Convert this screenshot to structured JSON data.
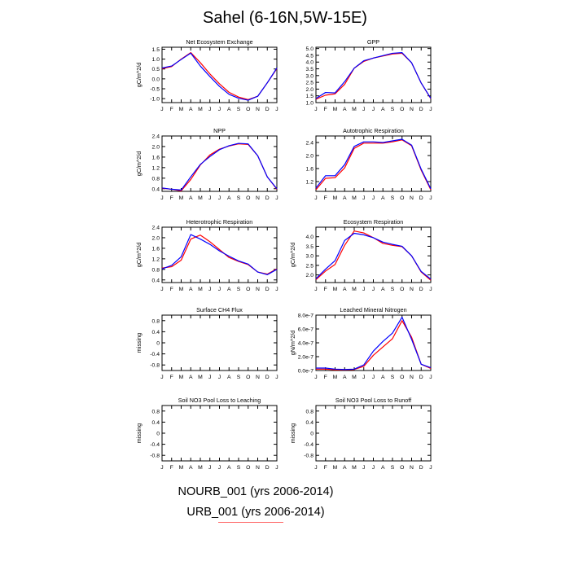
{
  "title": "Sahel (6-16N,5W-15E)",
  "legend": {
    "entries": [
      {
        "label": "NOURB_001 (yrs 2006-2014)",
        "color": "#0000ff"
      },
      {
        "label": "URB_001 (yrs 2006-2014)",
        "color": "#ff0000"
      }
    ]
  },
  "colors": {
    "series_a": "#ff0000",
    "series_b": "#0000ff",
    "axis": "#000000"
  },
  "chart_data": [
    {
      "type": "line",
      "title": "Net Ecosystem Exchange",
      "ylabel": "gC/m^2/d",
      "x": [
        "J",
        "F",
        "M",
        "A",
        "M",
        "J",
        "J",
        "A",
        "S",
        "O",
        "N",
        "D",
        "J"
      ],
      "ylim": [
        -1.2,
        1.6
      ],
      "yticks": [
        -1.0,
        -0.5,
        0.0,
        0.5,
        1.0,
        1.5
      ],
      "ytick_labels": [
        "-1.0",
        "-0.5",
        "0.0",
        "0.5",
        "1.0",
        "1.5"
      ],
      "series": [
        {
          "color": "#ff0000",
          "values": [
            0.52,
            0.62,
            1.0,
            1.33,
            0.82,
            0.25,
            -0.25,
            -0.68,
            -0.92,
            -1.05,
            -0.88,
            -0.2,
            0.52
          ]
        },
        {
          "color": "#0000ff",
          "values": [
            0.55,
            0.65,
            0.98,
            1.3,
            0.65,
            0.12,
            -0.38,
            -0.78,
            -0.98,
            -1.08,
            -0.88,
            -0.2,
            0.55
          ]
        }
      ]
    },
    {
      "type": "line",
      "title": "GPP",
      "ylabel": "",
      "x": [
        "J",
        "F",
        "M",
        "A",
        "M",
        "J",
        "J",
        "A",
        "S",
        "O",
        "N",
        "D",
        "J"
      ],
      "ylim": [
        1.0,
        5.1
      ],
      "yticks": [
        1.0,
        1.5,
        2.0,
        2.5,
        3.0,
        3.5,
        4.0,
        4.5,
        5.0
      ],
      "ytick_labels": [
        "1.0",
        "1.5",
        "2.0",
        "2.5",
        "3.0",
        "3.5",
        "4.0",
        "4.5",
        "5.0"
      ],
      "series": [
        {
          "color": "#ff0000",
          "values": [
            1.25,
            1.55,
            1.65,
            2.35,
            3.55,
            4.05,
            4.3,
            4.45,
            4.6,
            4.65,
            3.95,
            2.45,
            1.3
          ]
        },
        {
          "color": "#0000ff",
          "values": [
            1.3,
            1.75,
            1.72,
            2.55,
            3.55,
            4.1,
            4.3,
            4.48,
            4.65,
            4.7,
            3.95,
            2.45,
            1.32
          ]
        }
      ]
    },
    {
      "type": "line",
      "title": "NPP",
      "ylabel": "gC/m^2/d",
      "x": [
        "J",
        "F",
        "M",
        "A",
        "M",
        "J",
        "J",
        "A",
        "S",
        "O",
        "N",
        "D",
        "J"
      ],
      "ylim": [
        0.3,
        2.4
      ],
      "yticks": [
        0.4,
        0.8,
        1.2,
        1.6,
        2.0,
        2.4
      ],
      "ytick_labels": [
        "0.4",
        "0.8",
        "1.2",
        "1.6",
        "2.0",
        "2.4"
      ],
      "series": [
        {
          "color": "#ff0000",
          "values": [
            0.42,
            0.38,
            0.32,
            0.75,
            1.3,
            1.68,
            1.9,
            2.02,
            2.1,
            2.08,
            1.65,
            0.85,
            0.38
          ]
        },
        {
          "color": "#0000ff",
          "values": [
            0.43,
            0.38,
            0.35,
            0.85,
            1.32,
            1.62,
            1.88,
            2.03,
            2.12,
            2.1,
            1.65,
            0.85,
            0.4
          ]
        }
      ]
    },
    {
      "type": "line",
      "title": "Autotrophic Respiration",
      "ylabel": "",
      "x": [
        "J",
        "F",
        "M",
        "A",
        "M",
        "J",
        "J",
        "A",
        "S",
        "O",
        "N",
        "D",
        "J"
      ],
      "ylim": [
        0.9,
        2.6
      ],
      "yticks": [
        1.2,
        1.6,
        2.0,
        2.4
      ],
      "ytick_labels": [
        "1.2",
        "1.6",
        "2.0",
        "2.4"
      ],
      "series": [
        {
          "color": "#ff0000",
          "values": [
            0.95,
            1.3,
            1.32,
            1.62,
            2.22,
            2.38,
            2.38,
            2.38,
            2.42,
            2.48,
            2.3,
            1.55,
            0.95
          ]
        },
        {
          "color": "#0000ff",
          "values": [
            1.0,
            1.38,
            1.38,
            1.72,
            2.28,
            2.42,
            2.42,
            2.4,
            2.45,
            2.5,
            2.32,
            1.58,
            0.98
          ]
        }
      ]
    },
    {
      "type": "line",
      "title": "Heterotrophic Respiration",
      "ylabel": "gC/m^2/d",
      "x": [
        "J",
        "F",
        "M",
        "A",
        "M",
        "J",
        "J",
        "A",
        "S",
        "O",
        "N",
        "D",
        "J"
      ],
      "ylim": [
        0.3,
        2.4
      ],
      "yticks": [
        0.4,
        0.8,
        1.2,
        1.6,
        2.0,
        2.4
      ],
      "ytick_labels": [
        "0.4",
        "0.8",
        "1.2",
        "1.6",
        "2.0",
        "2.4"
      ],
      "series": [
        {
          "color": "#ff0000",
          "values": [
            0.85,
            0.9,
            1.15,
            1.95,
            2.1,
            1.85,
            1.55,
            1.25,
            1.1,
            0.98,
            0.7,
            0.62,
            0.82
          ]
        },
        {
          "color": "#0000ff",
          "values": [
            0.82,
            0.95,
            1.28,
            2.12,
            1.95,
            1.75,
            1.5,
            1.3,
            1.12,
            1.0,
            0.7,
            0.6,
            0.8
          ]
        }
      ]
    },
    {
      "type": "line",
      "title": "Ecosystem Respiration",
      "ylabel": "gC/m^2/d",
      "x": [
        "J",
        "F",
        "M",
        "A",
        "M",
        "J",
        "J",
        "A",
        "S",
        "O",
        "N",
        "D",
        "J"
      ],
      "ylim": [
        1.6,
        4.5
      ],
      "yticks": [
        2.0,
        2.5,
        3.0,
        3.5,
        4.0
      ],
      "ytick_labels": [
        "2.0",
        "2.5",
        "3.0",
        "3.5",
        "4.0"
      ],
      "series": [
        {
          "color": "#ff0000",
          "values": [
            1.75,
            2.2,
            2.55,
            3.55,
            4.3,
            4.2,
            3.95,
            3.65,
            3.55,
            3.48,
            3.0,
            2.15,
            1.72
          ]
        },
        {
          "color": "#0000ff",
          "values": [
            1.8,
            2.3,
            2.75,
            3.8,
            4.18,
            4.1,
            3.95,
            3.72,
            3.6,
            3.5,
            3.0,
            2.18,
            1.78
          ]
        }
      ]
    },
    {
      "type": "line",
      "title": "Surface CH4 Flux",
      "ylabel": "missing",
      "x": [
        "J",
        "F",
        "M",
        "A",
        "M",
        "J",
        "J",
        "A",
        "S",
        "O",
        "N",
        "D",
        "J"
      ],
      "ylim": [
        -1.0,
        1.0
      ],
      "yticks": [
        -0.8,
        -0.4,
        0.0,
        0.4,
        0.8
      ],
      "ytick_labels": [
        "-0.8",
        "-0.4",
        "0",
        "0.4",
        "0.8"
      ],
      "series": []
    },
    {
      "type": "line",
      "title": "Leached Mineral Nitrogen",
      "ylabel": "gN/m^2/d",
      "x": [
        "J",
        "F",
        "M",
        "A",
        "M",
        "J",
        "J",
        "A",
        "S",
        "O",
        "N",
        "D",
        "J"
      ],
      "ylim": [
        0.0,
        8e-07
      ],
      "yticks": [
        0.0,
        2e-07,
        4e-07,
        6e-07,
        8e-07
      ],
      "ytick_labels": [
        "0.0e-7",
        "2.0e-7",
        "4.0e-7",
        "6.0e-7",
        "8.0e-7"
      ],
      "series": [
        {
          "color": "#ff0000",
          "values": [
            2e-08,
            2e-08,
            1e-08,
            1e-08,
            1.5e-08,
            6e-08,
            2.2e-07,
            3.4e-07,
            4.6e-07,
            7.2e-07,
            4.8e-07,
            9e-08,
            3e-08
          ]
        },
        {
          "color": "#0000ff",
          "values": [
            3.5e-08,
            3.5e-08,
            2e-08,
            1.5e-08,
            2e-08,
            8e-08,
            2.8e-07,
            4.2e-07,
            5.4e-07,
            7.7e-07,
            4.5e-07,
            9e-08,
            4e-08
          ]
        }
      ]
    },
    {
      "type": "line",
      "title": "Soil NO3 Pool Loss to Leaching",
      "ylabel": "missing",
      "x": [
        "J",
        "F",
        "M",
        "A",
        "M",
        "J",
        "J",
        "A",
        "S",
        "O",
        "N",
        "D",
        "J"
      ],
      "ylim": [
        -1.0,
        1.0
      ],
      "yticks": [
        -0.8,
        -0.4,
        0.0,
        0.4,
        0.8
      ],
      "ytick_labels": [
        "-0.8",
        "-0.4",
        "0",
        "0.4",
        "0.8"
      ],
      "series": []
    },
    {
      "type": "line",
      "title": "Soil NO3 Pool Loss to Runoff",
      "ylabel": "missing",
      "x": [
        "J",
        "F",
        "M",
        "A",
        "M",
        "J",
        "J",
        "A",
        "S",
        "O",
        "N",
        "D",
        "J"
      ],
      "ylim": [
        -1.0,
        1.0
      ],
      "yticks": [
        -0.8,
        -0.4,
        0.0,
        0.4,
        0.8
      ],
      "ytick_labels": [
        "-0.8",
        "-0.4",
        "0",
        "0.4",
        "0.8"
      ],
      "series": []
    }
  ]
}
